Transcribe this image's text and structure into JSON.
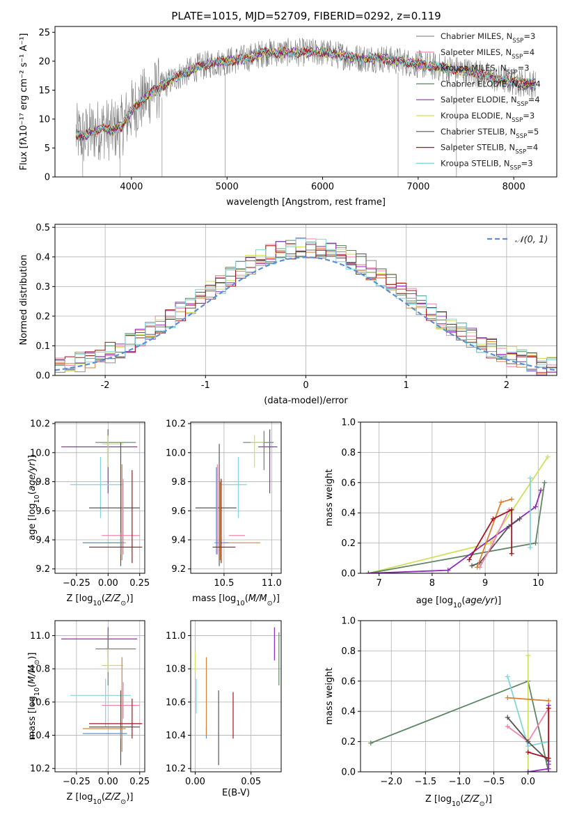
{
  "title": "PLATE=1015, MJD=52709, FIBERID=0292, z=0.119",
  "colors": {
    "Chabrier MILES": "#8f8f8f",
    "Salpeter MILES": "#ef86ad",
    "Kroupa MILES": "#d98232",
    "Chabrier ELODIE": "#5f8663",
    "Salpeter ELODIE": "#8f2cbf",
    "Kroupa ELODIE": "#cfe05a",
    "Chabrier STELIB": "#555555",
    "Salpeter STELIB": "#a3141c",
    "Kroupa STELIB": "#80d6dc",
    "gauss": "#5a8fd6"
  },
  "chart_data": [
    {
      "id": "spectrum",
      "type": "line",
      "title": "PLATE=1015, MJD=52709, FIBERID=0292, z=0.119",
      "xlabel": "wavelength [Angstrom, rest frame]",
      "ylabel": "Flux [fλ10⁻¹⁷ erg cm⁻² s⁻¹ A⁻¹]",
      "xlim": [
        3200,
        8450
      ],
      "ylim": [
        0,
        26
      ],
      "xticks": [
        4000,
        5000,
        6000,
        7000,
        8000
      ],
      "yticks": [
        0,
        5,
        10,
        15,
        20,
        25
      ],
      "legend_placement": "upper right",
      "legend": [
        {
          "label": "Chabrier MILES, N",
          "sub": "SSP",
          "suffix": "=3",
          "color": "#8f8f8f"
        },
        {
          "label": "Salpeter MILES, N",
          "sub": "SSP",
          "suffix": "=4",
          "color": "#ef86ad"
        },
        {
          "label": "Kroupa MILES, N",
          "sub": "SSP",
          "suffix": "=3",
          "color": "#d98232"
        },
        {
          "label": "Chabrier ELODIE, N",
          "sub": "SSP",
          "suffix": "=4",
          "color": "#5f8663"
        },
        {
          "label": "Salpeter ELODIE, N",
          "sub": "SSP",
          "suffix": "=4",
          "color": "#8f2cbf"
        },
        {
          "label": "Kroupa ELODIE, N",
          "sub": "SSP",
          "suffix": "=3",
          "color": "#cfe05a"
        },
        {
          "label": "Chabrier STELIB, N",
          "sub": "SSP",
          "suffix": "=5",
          "color": "#555555"
        },
        {
          "label": "Salpeter STELIB, N",
          "sub": "SSP",
          "suffix": "=4",
          "color": "#a3141c"
        },
        {
          "label": "Kroupa STELIB, N",
          "sub": "SSP",
          "suffix": "=3",
          "color": "#80d6dc"
        }
      ],
      "model_curve": {
        "x": [
          3400,
          3500,
          3600,
          3700,
          3800,
          3900,
          4000,
          4100,
          4200,
          4300,
          4500,
          4700,
          4900,
          5000,
          5200,
          5400,
          5600,
          5800,
          6000,
          6200,
          6400,
          6600,
          6800,
          7000,
          7200,
          7400,
          7600,
          7800,
          8000,
          8200
        ],
        "y": [
          7.5,
          7.0,
          7.8,
          8.5,
          8.0,
          8.8,
          11.5,
          13.0,
          14.5,
          15.5,
          17.5,
          19.0,
          19.8,
          20.0,
          20.5,
          21.5,
          21.5,
          21.5,
          21.5,
          21.0,
          20.5,
          20.5,
          20.0,
          19.5,
          19.0,
          18.5,
          18.0,
          17.0,
          16.5,
          16.0
        ]
      },
      "data_noise_amplitude": 2.5,
      "absorption_dips_x": [
        3490,
        3880,
        4320,
        4980,
        6790,
        7400
      ]
    },
    {
      "id": "residuals",
      "type": "bar",
      "xlabel": "(data-model)/error",
      "ylabel": "Normed distribution",
      "xlim": [
        -2.5,
        2.5
      ],
      "ylim": [
        0,
        0.51
      ],
      "xticks": [
        -2,
        -1,
        0,
        1,
        2
      ],
      "yticks": [
        0.0,
        0.1,
        0.2,
        0.3,
        0.4,
        0.5
      ],
      "legend_placement": "upper right",
      "gauss_label": "𝒩(0, 1)",
      "bin_width": 0.1
    },
    {
      "id": "age-vs-Z",
      "type": "scatter",
      "xlabel": "Z [log₁₀(Z/Z⊙)]",
      "ylabel": "age  [log₁₀(age/yr)]",
      "xlim": [
        -0.42,
        0.29
      ],
      "ylim": [
        9.17,
        10.21
      ],
      "xticks": [
        -0.25,
        0.0,
        0.25
      ],
      "xtick_labels": [
        "−0.25",
        "0.00",
        "0.25"
      ],
      "yticks": [
        9.2,
        9.4,
        9.6,
        9.8,
        10.0,
        10.2
      ],
      "points": [
        {
          "color": "#8f2cbf",
          "x": [
            -0.37,
            0.23
          ],
          "y": [
            10.04,
            10.04
          ],
          "vx": 0.0,
          "vy": [
            9.72,
            10.16
          ]
        },
        {
          "color": "#5f8663",
          "x": [
            -0.1,
            0.22
          ],
          "y": [
            10.07,
            10.07
          ],
          "vx": 0.0,
          "vy": [
            9.93,
            10.15
          ]
        },
        {
          "color": "#cfe05a",
          "x": [
            -0.05,
            0.12
          ],
          "y": [
            10.06,
            10.06
          ],
          "vx": 0.0,
          "vy": [
            9.9,
            10.12
          ]
        },
        {
          "color": "#80d6dc",
          "x": [
            -0.3,
            0.12
          ],
          "y": [
            9.78,
            9.78
          ],
          "vx": -0.06,
          "vy": [
            9.55,
            9.97
          ]
        },
        {
          "color": "#555555",
          "x": [
            -0.15,
            0.25
          ],
          "y": [
            9.62,
            9.62
          ],
          "vx": 0.1,
          "vy": [
            9.22,
            10.07
          ]
        },
        {
          "color": "#ef86ad",
          "x": [
            -0.05,
            0.25
          ],
          "y": [
            9.43,
            9.43
          ],
          "vx": 0.12,
          "vy": [
            9.3,
            9.82
          ]
        },
        {
          "color": "#d98232",
          "x": [
            -0.2,
            0.14
          ],
          "y": [
            9.38,
            9.38
          ],
          "vx": 0.11,
          "vy": [
            9.26,
            9.92
          ]
        },
        {
          "color": "#5a8fd6",
          "x": [
            -0.2,
            0.12
          ],
          "y": [
            9.38,
            9.38
          ],
          "vx": 0.1,
          "vy": [
            9.3,
            9.45
          ]
        },
        {
          "color": "#a3141c",
          "x": [
            -0.15,
            0.27
          ],
          "y": [
            9.35,
            9.35
          ],
          "vx": 0.19,
          "vy": [
            9.24,
            9.88
          ]
        }
      ]
    },
    {
      "id": "age-vs-mass",
      "type": "scatter",
      "xlabel": "mass [log₁₀(M/M⊙)]",
      "ylabel": "",
      "xlim": [
        10.15,
        11.1
      ],
      "ylim": [
        9.17,
        10.21
      ],
      "xticks": [
        10.5,
        11.0
      ],
      "xtick_labels": [
        "10.5",
        "11.0"
      ],
      "yticks": [
        9.2,
        9.4,
        9.6,
        9.8,
        10.0,
        10.2
      ],
      "points": [
        {
          "color": "#8f2cbf",
          "x": [
            10.86,
            11.06
          ],
          "y": [
            10.04,
            10.04
          ],
          "vx": 10.98,
          "vy": [
            9.72,
            10.16
          ]
        },
        {
          "color": "#5f8663",
          "x": [
            10.7,
            11.02
          ],
          "y": [
            10.07,
            10.07
          ],
          "vx": 10.92,
          "vy": [
            9.88,
            10.15
          ]
        },
        {
          "color": "#cfe05a",
          "x": [
            10.78,
            10.92
          ],
          "y": [
            10.07,
            10.07
          ],
          "vx": 10.82,
          "vy": [
            9.9,
            10.12
          ]
        },
        {
          "color": "#80d6dc",
          "x": [
            10.45,
            10.74
          ],
          "y": [
            9.78,
            9.78
          ],
          "vx": 10.65,
          "vy": [
            9.55,
            9.97
          ]
        },
        {
          "color": "#555555",
          "x": [
            10.2,
            10.63
          ],
          "y": [
            9.62,
            9.62
          ],
          "vx": 10.45,
          "vy": [
            9.22,
            10.06
          ]
        },
        {
          "color": "#ef86ad",
          "x": [
            10.55,
            10.72
          ],
          "y": [
            9.43,
            9.43
          ],
          "vx": 10.43,
          "vy": [
            9.3,
            9.92
          ]
        },
        {
          "color": "#d98232",
          "x": [
            10.5,
            10.88
          ],
          "y": [
            9.38,
            9.38
          ],
          "vx": 10.46,
          "vy": [
            9.26,
            9.8
          ]
        },
        {
          "color": "#5a8fd6",
          "x": [
            10.4,
            10.55
          ],
          "y": [
            9.38,
            9.38
          ],
          "vx": 10.42,
          "vy": [
            9.3,
            9.9
          ]
        },
        {
          "color": "#a3141c",
          "x": [
            10.38,
            10.62
          ],
          "y": [
            9.35,
            9.35
          ],
          "vx": 10.47,
          "vy": [
            9.24,
            9.82
          ]
        }
      ]
    },
    {
      "id": "massweight-vs-age",
      "type": "line",
      "xlabel": "age  [log₁₀(age/yr)]",
      "ylabel": "mass weight",
      "xlim": [
        6.65,
        10.35
      ],
      "ylim": [
        0,
        1.0
      ],
      "xticks": [
        7,
        8,
        9,
        10
      ],
      "yticks": [
        0.0,
        0.2,
        0.4,
        0.6,
        0.8,
        1.0
      ],
      "series": [
        {
          "color": "#cfe05a",
          "x": [
            6.8,
            9.1,
            10.18
          ],
          "y": [
            0.0,
            0.2,
            0.77
          ]
        },
        {
          "color": "#5f8663",
          "x": [
            6.8,
            9.95,
            10.12
          ],
          "y": [
            0.0,
            0.2,
            0.6
          ]
        },
        {
          "color": "#8f2cbf",
          "x": [
            6.8,
            8.3,
            9.95,
            10.05
          ],
          "y": [
            0.0,
            0.02,
            0.44,
            0.55
          ]
        },
        {
          "color": "#80d6dc",
          "x": [
            9.85,
            9.85
          ],
          "y": [
            0.17,
            0.63
          ]
        },
        {
          "color": "#555555",
          "x": [
            8.75,
            8.9,
            9.45,
            9.65
          ],
          "y": [
            0.05,
            0.07,
            0.31,
            0.36
          ]
        },
        {
          "color": "#ef86ad",
          "x": [
            8.9,
            9.15,
            9.45
          ],
          "y": [
            0.04,
            0.2,
            0.42
          ]
        },
        {
          "color": "#d98232",
          "x": [
            8.85,
            9.3,
            9.5
          ],
          "y": [
            0.04,
            0.47,
            0.49
          ]
        },
        {
          "color": "#a3141c",
          "x": [
            8.7,
            9.15,
            9.5,
            9.5
          ],
          "y": [
            0.09,
            0.36,
            0.42,
            0.13
          ]
        }
      ]
    },
    {
      "id": "mass-vs-Z",
      "type": "scatter",
      "xlabel": "Z [log₁₀(Z/Z⊙)]",
      "ylabel": "mass [log₁₀(M/M⊙)]",
      "xlim": [
        -0.42,
        0.29
      ],
      "ylim": [
        10.18,
        11.09
      ],
      "xticks": [
        -0.25,
        0.0,
        0.25
      ],
      "xtick_labels": [
        "−0.25",
        "0.00",
        "0.25"
      ],
      "yticks": [
        10.2,
        10.4,
        10.6,
        10.8,
        11.0
      ],
      "points": [
        {
          "color": "#8f2cbf",
          "x": [
            -0.37,
            0.23
          ],
          "y": [
            10.98,
            10.98
          ],
          "vx": 0.0,
          "vy": [
            10.86,
            11.05
          ]
        },
        {
          "color": "#5f8663",
          "x": [
            -0.1,
            0.22
          ],
          "y": [
            10.92,
            10.92
          ],
          "vx": 0.0,
          "vy": [
            10.7,
            11.02
          ]
        },
        {
          "color": "#cfe05a",
          "x": [
            -0.05,
            0.12
          ],
          "y": [
            10.82,
            10.82
          ],
          "vx": 0.0,
          "vy": [
            10.78,
            10.92
          ]
        },
        {
          "color": "#80d6dc",
          "x": [
            -0.3,
            0.18
          ],
          "y": [
            10.64,
            10.64
          ],
          "vx": -0.02,
          "vy": [
            10.45,
            10.74
          ]
        },
        {
          "color": "#ef86ad",
          "x": [
            -0.05,
            0.25
          ],
          "y": [
            10.58,
            10.58
          ],
          "vx": 0.12,
          "vy": [
            10.5,
            10.72
          ]
        },
        {
          "color": "#d98232",
          "x": [
            -0.2,
            0.14
          ],
          "y": [
            10.44,
            10.44
          ],
          "vx": 0.11,
          "vy": [
            10.3,
            10.87
          ]
        },
        {
          "color": "#555555",
          "x": [
            -0.15,
            0.25
          ],
          "y": [
            10.45,
            10.45
          ],
          "vx": 0.1,
          "vy": [
            10.22,
            10.67
          ]
        },
        {
          "color": "#5a8fd6",
          "x": [
            -0.2,
            0.15
          ],
          "y": [
            10.41,
            10.41
          ],
          "vx": 0.1,
          "vy": [
            10.38,
            10.45
          ]
        },
        {
          "color": "#a3141c",
          "x": [
            -0.15,
            0.27
          ],
          "y": [
            10.47,
            10.47
          ],
          "vx": 0.19,
          "vy": [
            10.38,
            10.62
          ]
        }
      ]
    },
    {
      "id": "mass-vs-ebv",
      "type": "scatter",
      "xlabel": "E(B-V)",
      "ylabel": "",
      "xlim": [
        -0.004,
        0.077
      ],
      "ylim": [
        10.18,
        11.09
      ],
      "xticks": [
        0.0,
        0.05
      ],
      "xtick_labels": [
        "0.00",
        "0.05"
      ],
      "yticks": [
        10.2,
        10.4,
        10.6,
        10.8,
        11.0
      ],
      "points": [
        {
          "color": "#cfe05a",
          "vx": 0.0,
          "vy": [
            10.78,
            10.9
          ]
        },
        {
          "color": "#80d6dc",
          "vx": 0.001,
          "vy": [
            10.53,
            10.74
          ]
        },
        {
          "color": "#5a8fd6",
          "vx": 0.01,
          "vy": [
            10.38,
            10.45
          ]
        },
        {
          "color": "#d98232",
          "vx": 0.01,
          "vy": [
            10.4,
            10.87
          ]
        },
        {
          "color": "#555555",
          "vx": 0.021,
          "vy": [
            10.22,
            10.67
          ]
        },
        {
          "color": "#a3141c",
          "vx": 0.034,
          "vy": [
            10.38,
            10.66
          ]
        },
        {
          "color": "#8f2cbf",
          "vx": 0.071,
          "vy": [
            10.85,
            11.05
          ]
        },
        {
          "color": "#5f8663",
          "vx": 0.075,
          "vy": [
            10.7,
            11.02
          ]
        }
      ]
    },
    {
      "id": "massweight-vs-Z",
      "type": "line",
      "xlabel": "Z [log₁₀(Z/Z⊙)]",
      "ylabel": "mass weight",
      "xlim": [
        -2.45,
        0.42
      ],
      "ylim": [
        0,
        1.0
      ],
      "xticks": [
        -2.0,
        -1.5,
        -1.0,
        -0.5,
        0.0
      ],
      "xtick_labels": [
        "−2.0",
        "−1.5",
        "−1.0",
        "−0.5",
        "0.0"
      ],
      "yticks": [
        0.0,
        0.2,
        0.4,
        0.6,
        0.8,
        1.0
      ],
      "series": [
        {
          "color": "#5f8663",
          "x": [
            -2.3,
            0.0,
            0.3
          ],
          "y": [
            0.19,
            0.6,
            0.0
          ]
        },
        {
          "color": "#cfe05a",
          "x": [
            0.0,
            0.0
          ],
          "y": [
            0.0,
            0.77
          ]
        },
        {
          "color": "#80d6dc",
          "x": [
            -0.3,
            0.0,
            0.3
          ],
          "y": [
            0.63,
            0.17,
            0.2
          ]
        },
        {
          "color": "#d98232",
          "x": [
            -0.3,
            0.3
          ],
          "y": [
            0.49,
            0.47
          ]
        },
        {
          "color": "#ef86ad",
          "x": [
            -0.3,
            0.0,
            0.3
          ],
          "y": [
            0.3,
            0.2,
            0.42
          ]
        },
        {
          "color": "#555555",
          "x": [
            -0.3,
            0.0,
            0.3,
            0.3
          ],
          "y": [
            0.36,
            0.2,
            0.07,
            0.05
          ]
        },
        {
          "color": "#8f2cbf",
          "x": [
            0.0,
            0.3,
            0.3
          ],
          "y": [
            0.0,
            0.02,
            0.44
          ]
        },
        {
          "color": "#a3141c",
          "x": [
            0.0,
            0.3,
            0.3
          ],
          "y": [
            0.13,
            0.09,
            0.42
          ]
        }
      ]
    }
  ]
}
